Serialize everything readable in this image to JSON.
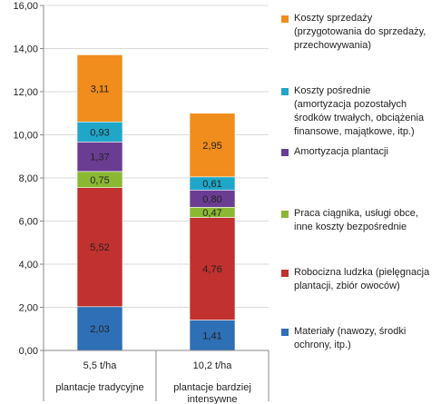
{
  "chart_data": {
    "type": "bar",
    "stacked": true,
    "ylim": [
      0,
      16
    ],
    "yticks": [
      "0,00",
      "2,00",
      "4,00",
      "6,00",
      "8,00",
      "10,00",
      "12,00",
      "14,00",
      "16,00"
    ],
    "gridlines": true,
    "legend_position": "right",
    "categories": [
      {
        "line1": "5,5 t/ha",
        "line2": "plantacje tradycyjne"
      },
      {
        "line1": "10,2 t/ha",
        "line2": "plantacje bardziej intensywne"
      }
    ],
    "series": [
      {
        "name": "Materiały (nawozy, środki ochrony, itp.)",
        "color": "#2e6fb6",
        "values": [
          2.03,
          1.41
        ],
        "labels": [
          "2,03",
          "1,41"
        ]
      },
      {
        "name": "Robocizna ludzka (pielęgnacja plantacji, zbiór owoców)",
        "color": "#c0312f",
        "values": [
          5.52,
          4.76
        ],
        "labels": [
          "5,52",
          "4,76"
        ]
      },
      {
        "name": "Praca ciągnika, usługi obce, inne koszty bezpośrednie",
        "color": "#8bb833",
        "values": [
          0.75,
          0.47
        ],
        "labels": [
          "0,75",
          "0,47"
        ]
      },
      {
        "name": "Amortyzacja plantacji",
        "color": "#6a3d93",
        "values": [
          1.37,
          0.8
        ],
        "labels": [
          "1,37",
          "0,80"
        ]
      },
      {
        "name": "Koszty pośrednie (amortyzacja pozostałych środków trwałych, obciążenia finansowe, majątkowe, itp.)",
        "color": "#1fa6c8",
        "values": [
          0.93,
          0.61
        ],
        "labels": [
          "0,93",
          "0,61"
        ]
      },
      {
        "name": "Koszty sprzedaży (przygotowania do sprzedaży, przechowywania)",
        "color": "#f08d1c",
        "values": [
          3.11,
          2.95
        ],
        "labels": [
          "3,11",
          "2,95"
        ]
      }
    ]
  },
  "legend": {
    "items": [
      {
        "text": "Koszty sprzedaży\n(przygotowania do sprzedaży,\nprzechowywania)",
        "color": "#f08d1c"
      },
      {
        "text": "Koszty pośrednie\n(amortyzacja pozostałych\nśrodków trwałych, obciążenia\nfinansowe, majątkowe, itp.)",
        "color": "#1fa6c8"
      },
      {
        "text": "Amortyzacja plantacji",
        "color": "#6a3d93"
      },
      {
        "text": "Praca ciągnika, usługi obce,\ninne koszty bezpośrednie",
        "color": "#8bb833"
      },
      {
        "text": "Robocizna ludzka (pielęgnacja\nplantacji, zbiór owoców)",
        "color": "#c0312f"
      },
      {
        "text": "Materiały (nawozy, środki\nochrony, itp.)",
        "color": "#2e6fb6"
      }
    ]
  }
}
